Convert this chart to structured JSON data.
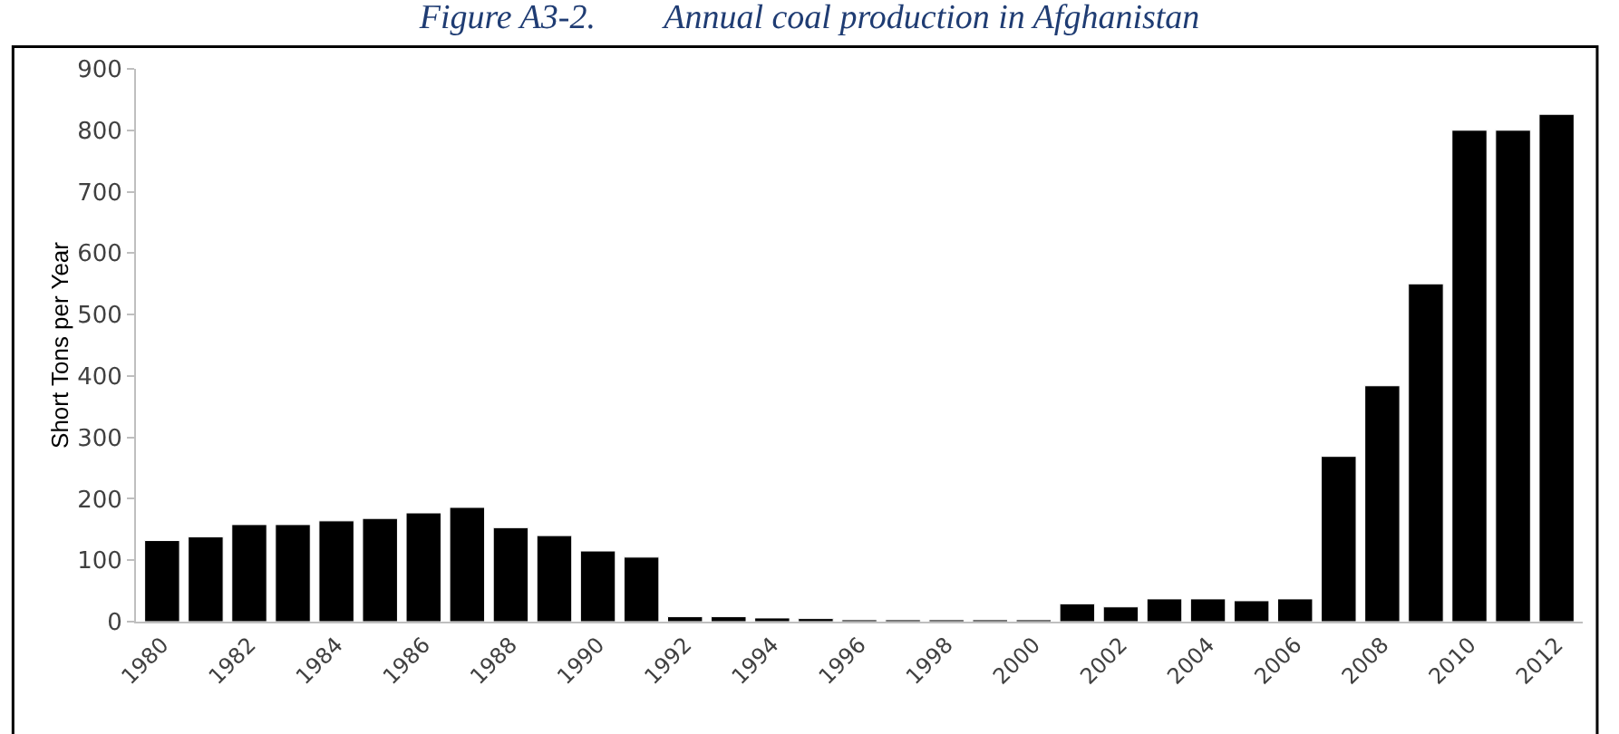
{
  "chart_data": {
    "type": "bar",
    "title": "Figure A3-2.        Annual coal production in Afghanistan",
    "ylabel": "Short Tons per Year",
    "categories": [
      "1980",
      null,
      "1982",
      null,
      "1984",
      null,
      "1986",
      null,
      "1988",
      null,
      "1990",
      null,
      "1992",
      null,
      "1994",
      null,
      "1996",
      null,
      "1998",
      null,
      "2000",
      null,
      "2002",
      null,
      "2004",
      null,
      "2006",
      null,
      "2008",
      null,
      "2010",
      null,
      "2012"
    ],
    "values": [
      132,
      138,
      158,
      158,
      164,
      168,
      177,
      186,
      153,
      140,
      115,
      105,
      8,
      8,
      6,
      5,
      3,
      3,
      3,
      3,
      3,
      29,
      24,
      37,
      37,
      34,
      37,
      269,
      384,
      550,
      800,
      800,
      826
    ],
    "color": "#000000",
    "ylim": [
      0,
      900
    ],
    "yticks": [
      0,
      100,
      200,
      300,
      400,
      500,
      600,
      700,
      800,
      900
    ],
    "grid": false
  }
}
